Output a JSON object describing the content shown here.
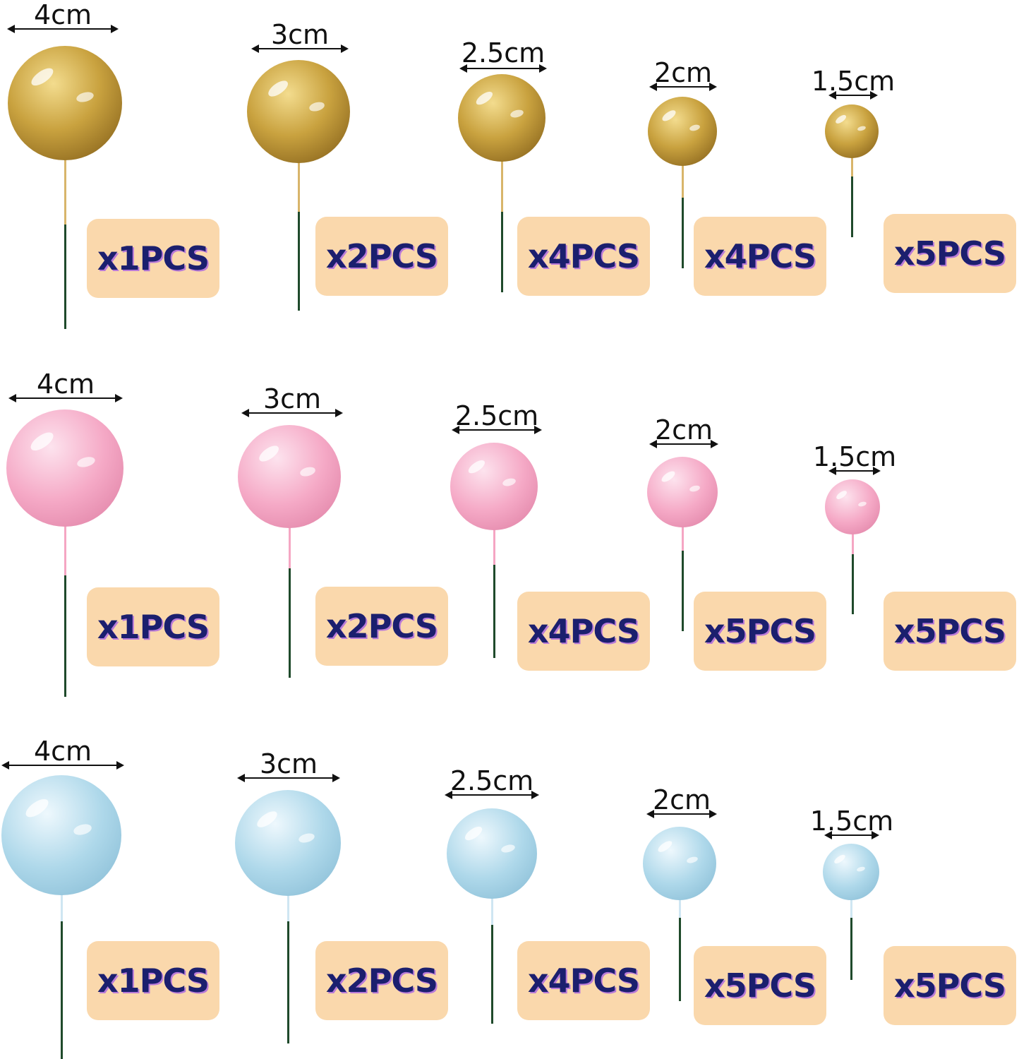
{
  "colors": {
    "badge_bg": "#fad8ac",
    "badge_text": "#1b1f6e",
    "badge_text_shadow": "#b87ad8",
    "stem": "#1f4a2b",
    "gold": {
      "light": "#f3dc8e",
      "mid": "#c9a23f",
      "dark": "#7a5614",
      "neck": "#d8b56a"
    },
    "pink": {
      "light": "#fde3ee",
      "mid": "#f5a9c6",
      "dark": "#dc7ba0",
      "neck": "#f5a6c3"
    },
    "blue": {
      "light": "#eef8fd",
      "mid": "#aed8ea",
      "dark": "#82b8d2",
      "neck": "#cfe6f2"
    }
  },
  "rows": [
    {
      "color": "gold",
      "items": [
        {
          "size": "4cm",
          "qty": "x1PCS"
        },
        {
          "size": "3cm",
          "qty": "x2PCS"
        },
        {
          "size": "2.5cm",
          "qty": "x4PCS"
        },
        {
          "size": "2cm",
          "qty": "x4PCS"
        },
        {
          "size": "1.5cm",
          "qty": "x5PCS"
        }
      ]
    },
    {
      "color": "pink",
      "items": [
        {
          "size": "4cm",
          "qty": "x1PCS"
        },
        {
          "size": "3cm",
          "qty": "x2PCS"
        },
        {
          "size": "2.5cm",
          "qty": "x4PCS"
        },
        {
          "size": "2cm",
          "qty": "x5PCS"
        },
        {
          "size": "1.5cm",
          "qty": "x5PCS"
        }
      ]
    },
    {
      "color": "blue",
      "items": [
        {
          "size": "4cm",
          "qty": "x1PCS"
        },
        {
          "size": "3cm",
          "qty": "x2PCS"
        },
        {
          "size": "2.5cm",
          "qty": "x4PCS"
        },
        {
          "size": "2cm",
          "qty": "x5PCS"
        },
        {
          "size": "1.5cm",
          "qty": "x5PCS"
        }
      ]
    }
  ]
}
